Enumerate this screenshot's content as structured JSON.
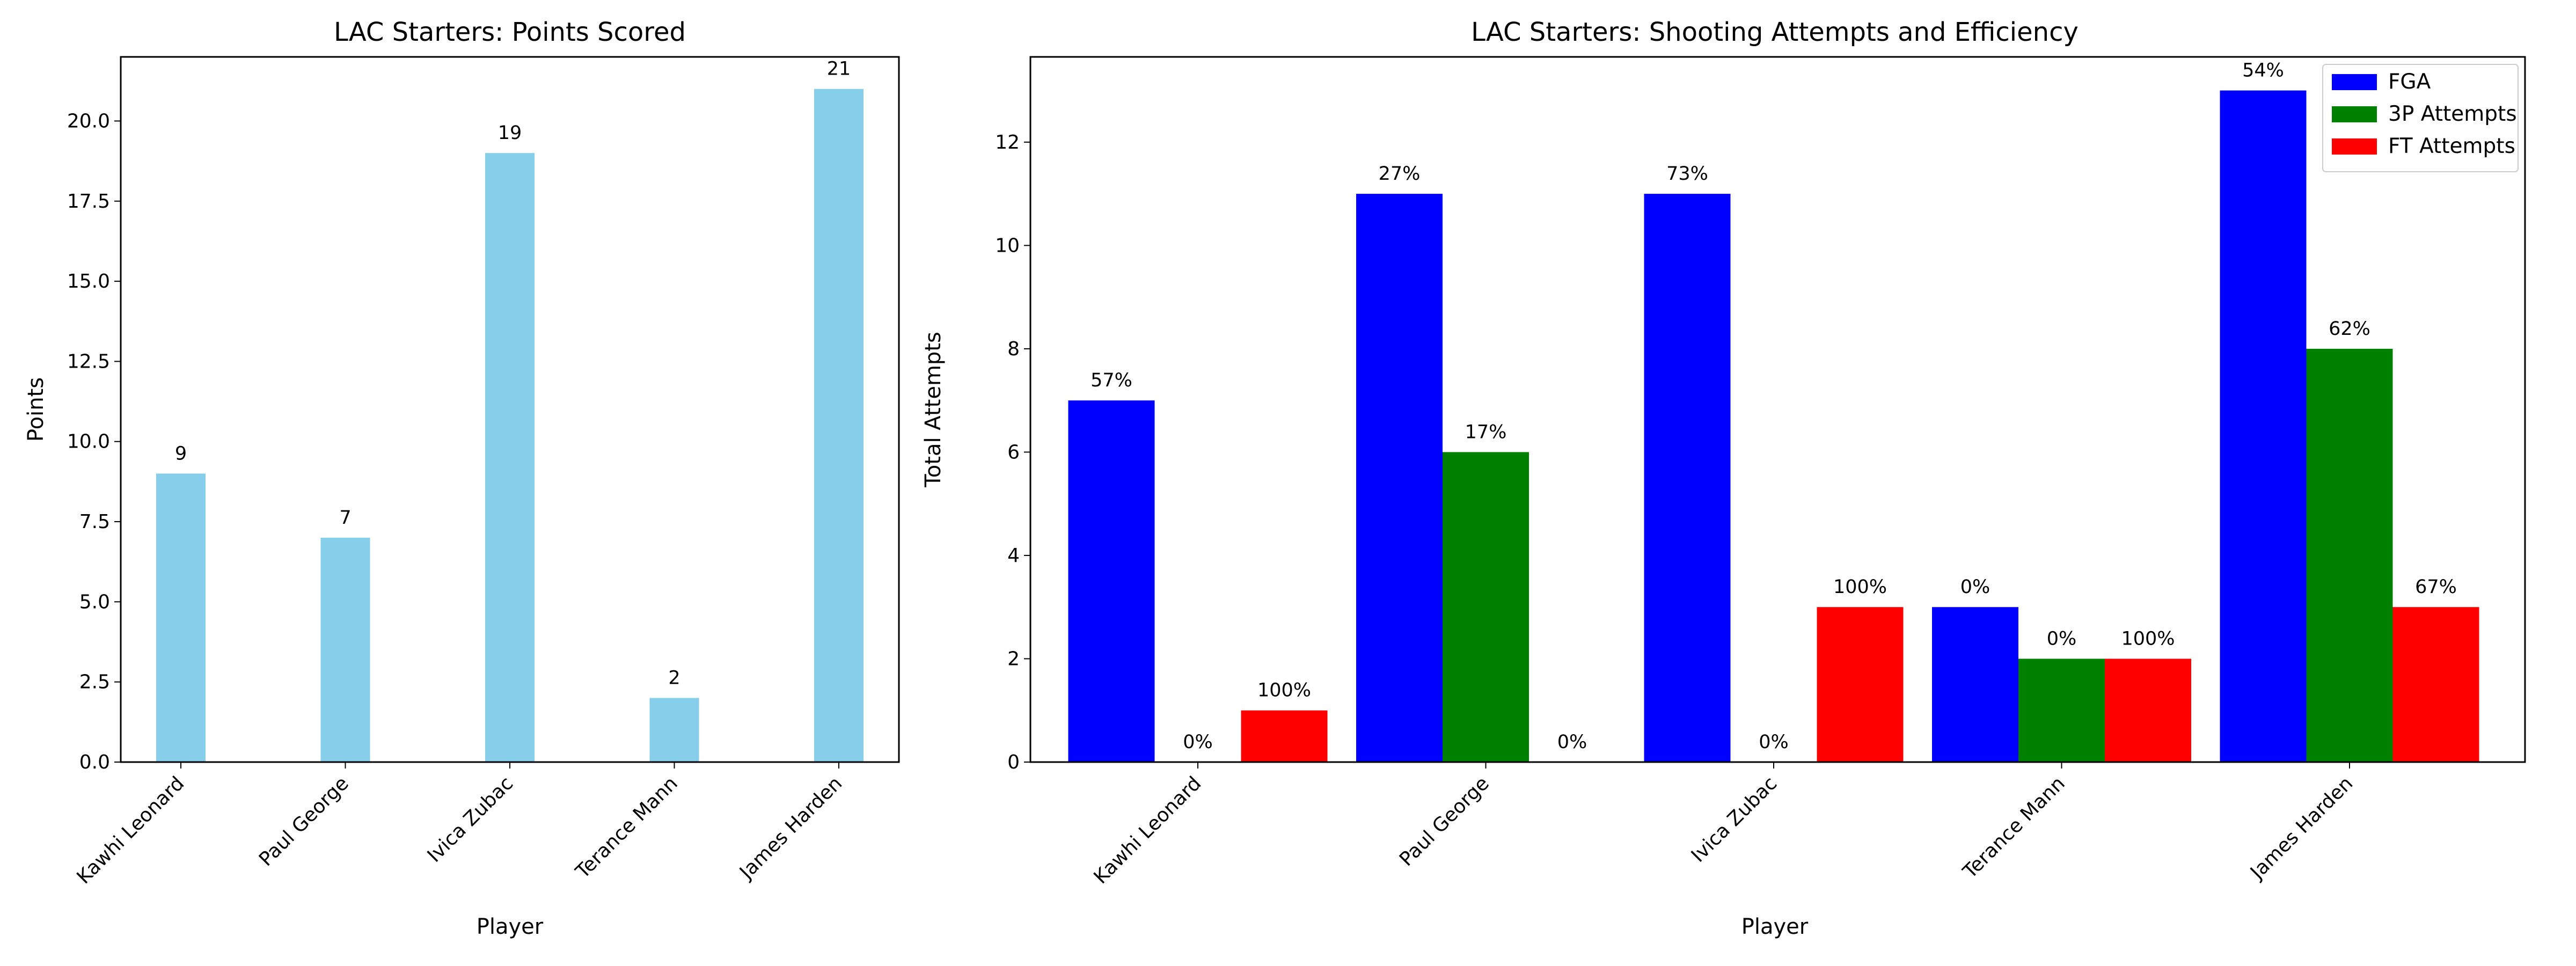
{
  "chart_data": [
    {
      "type": "bar",
      "title": "LAC Starters: Points Scored",
      "xlabel": "Player",
      "ylabel": "Points",
      "categories": [
        "Kawhi Leonard",
        "Paul George",
        "Ivica Zubac",
        "Terance Mann",
        "James Harden"
      ],
      "values": [
        9,
        7,
        19,
        2,
        21
      ],
      "data_labels": [
        "9",
        "7",
        "19",
        "2",
        "21"
      ],
      "ylim": [
        0,
        22
      ],
      "yticks": [
        "0.0",
        "2.5",
        "5.0",
        "7.5",
        "10.0",
        "12.5",
        "15.0",
        "17.5",
        "20.0"
      ],
      "grid": false,
      "colors": [
        "#87ceeb"
      ]
    },
    {
      "type": "bar",
      "title": "LAC Starters: Shooting Attempts and Efficiency",
      "xlabel": "Player",
      "ylabel": "Total Attempts",
      "categories": [
        "Kawhi Leonard",
        "Paul George",
        "Ivica Zubac",
        "Terance Mann",
        "James Harden"
      ],
      "series": [
        {
          "name": "FGA",
          "values": [
            7,
            11,
            11,
            3,
            13
          ],
          "data_labels": [
            "57%",
            "27%",
            "73%",
            "0%",
            "54%"
          ],
          "color": "#0000ff"
        },
        {
          "name": "3P Attempts",
          "values": [
            0,
            6,
            0,
            2,
            8
          ],
          "data_labels": [
            "0%",
            "17%",
            "0%",
            "0%",
            "62%"
          ],
          "color": "#008000"
        },
        {
          "name": "FT Attempts",
          "values": [
            1,
            0,
            3,
            2,
            3
          ],
          "data_labels": [
            "100%",
            "0%",
            "100%",
            "100%",
            "67%"
          ],
          "color": "#ff0000"
        }
      ],
      "ylim": [
        0,
        13.65
      ],
      "yticks": [
        "0",
        "2",
        "4",
        "6",
        "8",
        "10",
        "12"
      ],
      "legend": "top-right",
      "grid": false
    }
  ]
}
